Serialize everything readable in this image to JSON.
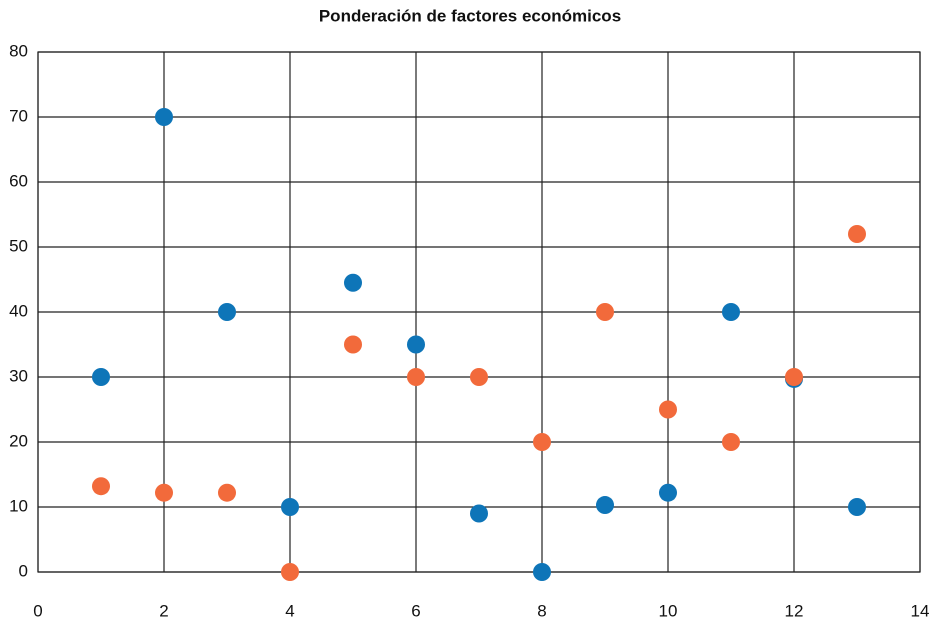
{
  "chart_data": {
    "type": "scatter",
    "title": "Ponderación de factores económicos",
    "series": [
      {
        "color": "#0e75b8",
        "x": [
          1,
          2,
          3,
          4,
          5,
          6,
          7,
          8,
          9,
          10,
          11,
          12,
          13
        ],
        "values": [
          30,
          70,
          40,
          10,
          44.5,
          35,
          9,
          0,
          10.3,
          12.2,
          40,
          29.7,
          10
        ]
      },
      {
        "color": "#f26a3b",
        "x": [
          1,
          2,
          3,
          4,
          5,
          6,
          7,
          8,
          9,
          10,
          11,
          12,
          13
        ],
        "values": [
          13.2,
          12.2,
          12.2,
          0,
          35,
          30,
          30,
          20,
          40,
          25,
          20,
          30,
          52
        ]
      }
    ],
    "xlim": [
      0,
      14
    ],
    "xticks": [
      0,
      2,
      4,
      6,
      8,
      10,
      12,
      14
    ],
    "ylim": [
      0,
      80
    ],
    "yticks": [
      0,
      10,
      20,
      30,
      40,
      50,
      60,
      70,
      80
    ],
    "grid": true
  }
}
